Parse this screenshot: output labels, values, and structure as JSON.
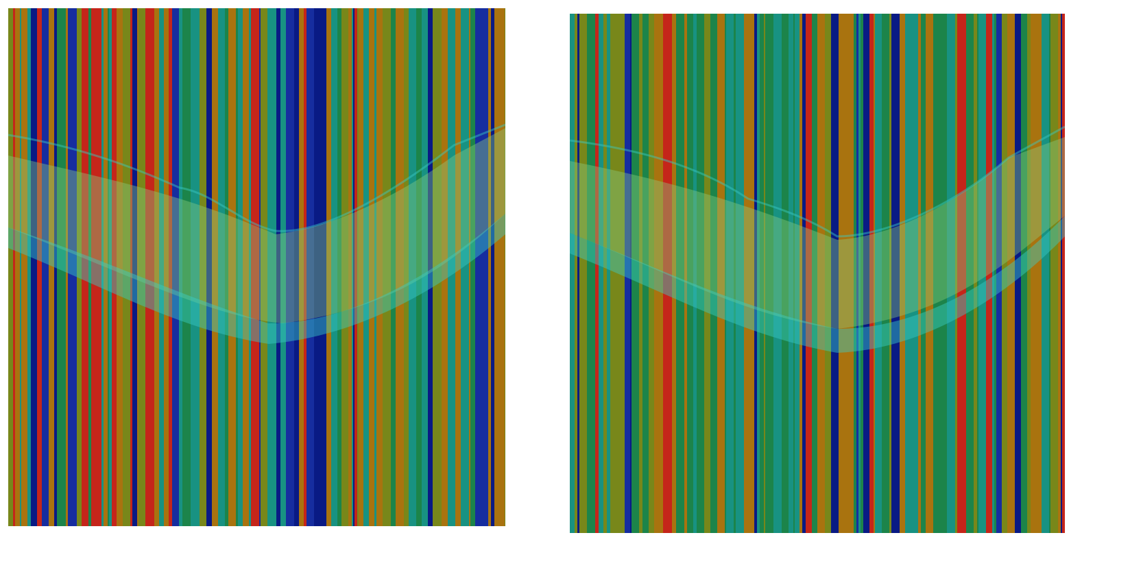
{
  "palette": {
    "green": "#1e8c4e",
    "teal": "#1a9a8a",
    "olive": "#7f8f1c",
    "orange": "#b37a10",
    "red": "#d0281c",
    "blue": "#1830a8",
    "navy": "#0a1c8c",
    "cyan": "#3fd8d0",
    "yellow": "#d8d850"
  },
  "panels": [
    {
      "id": "left",
      "seed": 7,
      "blue_bias": 0.22
    },
    {
      "id": "right",
      "seed": 31,
      "blue_bias": 0.08
    }
  ]
}
